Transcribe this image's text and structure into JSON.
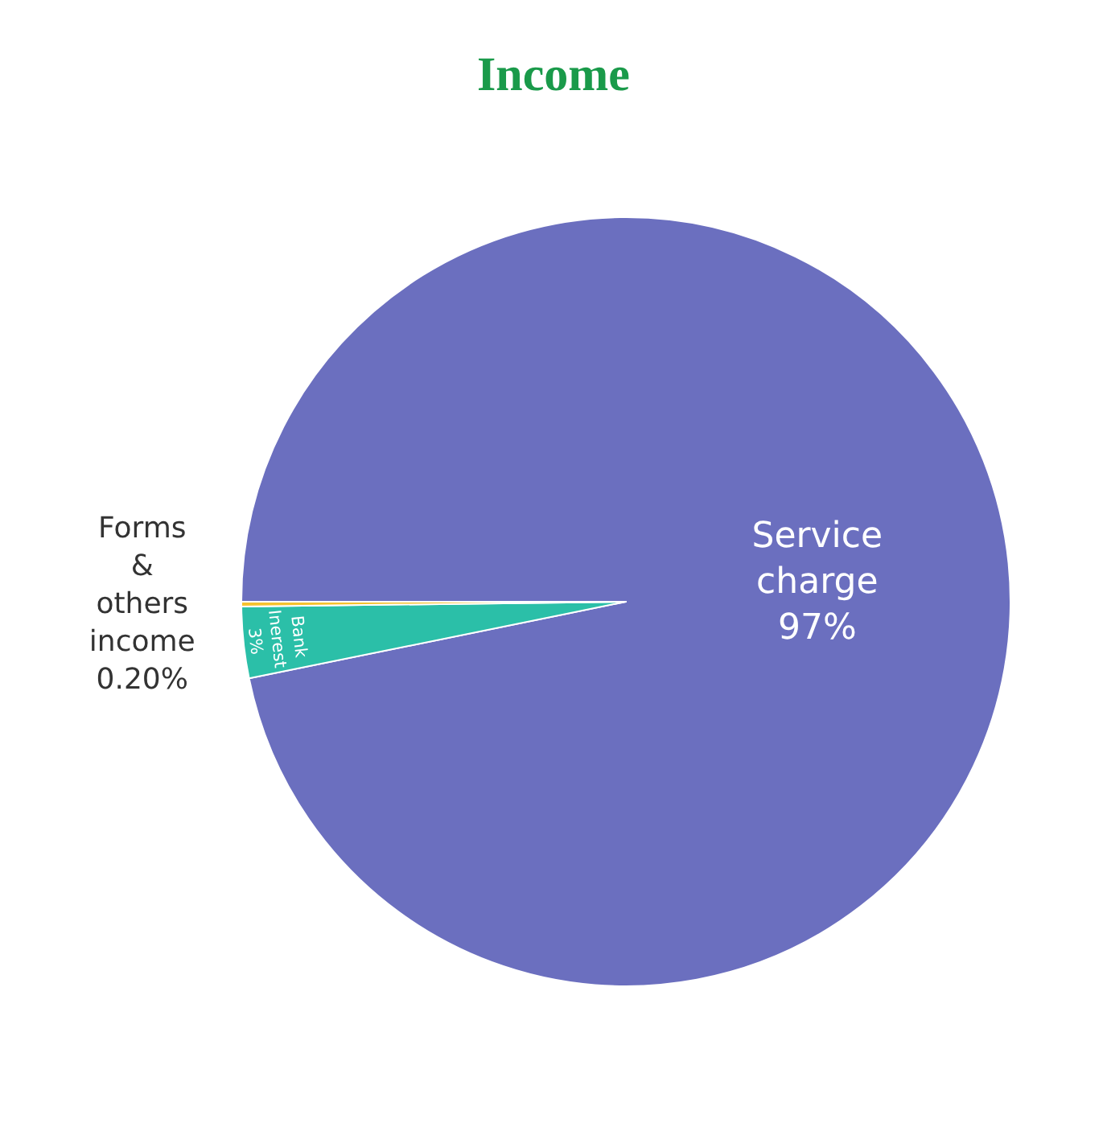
{
  "chart_data": {
    "type": "pie",
    "title": "Income",
    "categories": [
      "Service charge",
      "Bank Inerest",
      "Forms & others income"
    ],
    "values": [
      97,
      3,
      0.2
    ],
    "value_labels": [
      "97%",
      "3%",
      "0.20%"
    ],
    "colors": [
      "#6b6fbf",
      "#2bbfa8",
      "#f5c22e"
    ],
    "legend": false
  }
}
